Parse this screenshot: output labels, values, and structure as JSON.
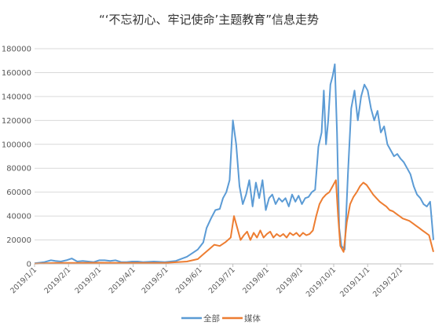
{
  "chart_data": {
    "type": "line",
    "title": "“‘不忘初心、牢记使命’主题教育”信息走势",
    "xlabel": "",
    "ylabel": "",
    "ylim": [
      0,
      180000
    ],
    "yticks": [
      0,
      20000,
      40000,
      60000,
      80000,
      100000,
      120000,
      140000,
      160000,
      180000
    ],
    "xtick_labels": [
      "2019/1/1",
      "2019/2/1",
      "2019/3/1",
      "2019/4/1",
      "2019/5/1",
      "2019/6/1",
      "2019/7/1",
      "2019/8/1",
      "2019/9/1",
      "2019/10/1",
      "2019/11/1",
      "2019/12/1"
    ],
    "grid": true,
    "legend_position": "bottom",
    "series": [
      {
        "name": "全部",
        "color": "#5B9BD5",
        "values": [
          [
            1,
            500
          ],
          [
            10,
            1500
          ],
          [
            16,
            3000
          ],
          [
            20,
            2500
          ],
          [
            25,
            2000
          ],
          [
            30,
            3000
          ],
          [
            35,
            4500
          ],
          [
            40,
            2000
          ],
          [
            45,
            2500
          ],
          [
            50,
            2000
          ],
          [
            55,
            1500
          ],
          [
            60,
            3000
          ],
          [
            65,
            3000
          ],
          [
            70,
            2500
          ],
          [
            75,
            3000
          ],
          [
            80,
            1500
          ],
          [
            85,
            1500
          ],
          [
            90,
            2000
          ],
          [
            95,
            2000
          ],
          [
            100,
            1500
          ],
          [
            110,
            2000
          ],
          [
            120,
            1500
          ],
          [
            130,
            2500
          ],
          [
            140,
            6000
          ],
          [
            145,
            9000
          ],
          [
            150,
            12000
          ],
          [
            155,
            18000
          ],
          [
            158,
            30000
          ],
          [
            162,
            38000
          ],
          [
            166,
            45000
          ],
          [
            170,
            46000
          ],
          [
            173,
            55000
          ],
          [
            176,
            60000
          ],
          [
            179,
            70000
          ],
          [
            182,
            120000
          ],
          [
            185,
            100000
          ],
          [
            188,
            65000
          ],
          [
            191,
            50000
          ],
          [
            194,
            58000
          ],
          [
            197,
            70000
          ],
          [
            200,
            48000
          ],
          [
            203,
            68000
          ],
          [
            206,
            55000
          ],
          [
            209,
            70000
          ],
          [
            212,
            45000
          ],
          [
            215,
            55000
          ],
          [
            218,
            58000
          ],
          [
            221,
            50000
          ],
          [
            224,
            55000
          ],
          [
            227,
            52000
          ],
          [
            230,
            55000
          ],
          [
            233,
            48000
          ],
          [
            236,
            58000
          ],
          [
            239,
            52000
          ],
          [
            242,
            57000
          ],
          [
            245,
            50000
          ],
          [
            248,
            55000
          ],
          [
            251,
            56000
          ],
          [
            254,
            60000
          ],
          [
            257,
            62000
          ],
          [
            260,
            98000
          ],
          [
            263,
            110000
          ],
          [
            265,
            145000
          ],
          [
            267,
            100000
          ],
          [
            269,
            120000
          ],
          [
            271,
            150000
          ],
          [
            273,
            157000
          ],
          [
            275,
            167000
          ],
          [
            277,
            110000
          ],
          [
            279,
            30000
          ],
          [
            281,
            15000
          ],
          [
            284,
            12000
          ],
          [
            287,
            75000
          ],
          [
            290,
            130000
          ],
          [
            293,
            145000
          ],
          [
            296,
            120000
          ],
          [
            299,
            140000
          ],
          [
            302,
            150000
          ],
          [
            305,
            145000
          ],
          [
            308,
            130000
          ],
          [
            311,
            120000
          ],
          [
            314,
            128000
          ],
          [
            317,
            110000
          ],
          [
            320,
            115000
          ],
          [
            323,
            100000
          ],
          [
            326,
            95000
          ],
          [
            329,
            90000
          ],
          [
            332,
            92000
          ],
          [
            335,
            88000
          ],
          [
            338,
            85000
          ],
          [
            341,
            80000
          ],
          [
            344,
            75000
          ],
          [
            347,
            65000
          ],
          [
            350,
            58000
          ],
          [
            353,
            55000
          ],
          [
            356,
            50000
          ],
          [
            359,
            48000
          ],
          [
            362,
            52000
          ],
          [
            365,
            20000
          ]
        ]
      },
      {
        "name": "媒体",
        "color": "#ED7D31",
        "values": [
          [
            1,
            200
          ],
          [
            20,
            800
          ],
          [
            40,
            800
          ],
          [
            60,
            1000
          ],
          [
            80,
            800
          ],
          [
            100,
            800
          ],
          [
            120,
            800
          ],
          [
            140,
            2000
          ],
          [
            150,
            4000
          ],
          [
            155,
            8000
          ],
          [
            160,
            12000
          ],
          [
            165,
            16000
          ],
          [
            170,
            15000
          ],
          [
            175,
            18000
          ],
          [
            180,
            22000
          ],
          [
            183,
            40000
          ],
          [
            186,
            30000
          ],
          [
            189,
            20000
          ],
          [
            192,
            24000
          ],
          [
            195,
            27000
          ],
          [
            198,
            20000
          ],
          [
            201,
            26000
          ],
          [
            204,
            22000
          ],
          [
            207,
            28000
          ],
          [
            210,
            22000
          ],
          [
            213,
            25000
          ],
          [
            216,
            27000
          ],
          [
            219,
            22000
          ],
          [
            222,
            25000
          ],
          [
            225,
            23000
          ],
          [
            228,
            25000
          ],
          [
            231,
            22000
          ],
          [
            234,
            26000
          ],
          [
            237,
            24000
          ],
          [
            240,
            26000
          ],
          [
            243,
            23000
          ],
          [
            246,
            26000
          ],
          [
            249,
            24000
          ],
          [
            252,
            25000
          ],
          [
            255,
            28000
          ],
          [
            258,
            40000
          ],
          [
            261,
            50000
          ],
          [
            264,
            55000
          ],
          [
            267,
            58000
          ],
          [
            270,
            60000
          ],
          [
            273,
            65000
          ],
          [
            276,
            70000
          ],
          [
            278,
            40000
          ],
          [
            280,
            15000
          ],
          [
            283,
            10000
          ],
          [
            286,
            35000
          ],
          [
            289,
            50000
          ],
          [
            292,
            56000
          ],
          [
            295,
            60000
          ],
          [
            298,
            65000
          ],
          [
            301,
            68000
          ],
          [
            304,
            66000
          ],
          [
            307,
            62000
          ],
          [
            310,
            58000
          ],
          [
            313,
            55000
          ],
          [
            316,
            52000
          ],
          [
            319,
            50000
          ],
          [
            322,
            48000
          ],
          [
            325,
            45000
          ],
          [
            328,
            44000
          ],
          [
            331,
            42000
          ],
          [
            334,
            40000
          ],
          [
            337,
            38000
          ],
          [
            340,
            37000
          ],
          [
            343,
            36000
          ],
          [
            346,
            34000
          ],
          [
            349,
            32000
          ],
          [
            352,
            30000
          ],
          [
            355,
            28000
          ],
          [
            358,
            26000
          ],
          [
            361,
            24000
          ],
          [
            365,
            10000
          ]
        ]
      }
    ]
  }
}
